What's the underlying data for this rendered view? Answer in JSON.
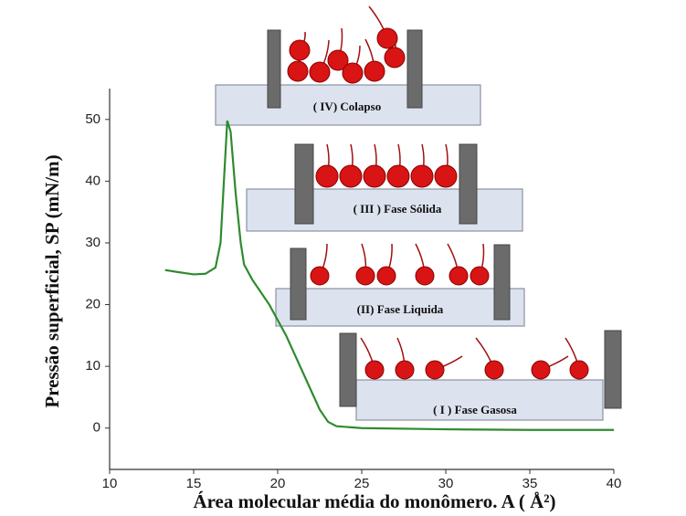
{
  "chart_data": {
    "type": "line",
    "xlabel": "Área molecular média do monômero. A ( Å²)",
    "ylabel": "Pressão superficial, SP (mN/m)",
    "x": [
      13.3,
      14,
      15,
      15.7,
      16.3,
      16.6,
      16.8,
      17.0,
      17.2,
      17.5,
      17.8,
      18.0,
      18.5,
      19.5,
      20.5,
      21.5,
      22.5,
      23,
      23.5,
      25,
      30,
      35,
      40
    ],
    "series": [
      {
        "color": "#2e8b2e",
        "values": [
          25.6,
          25.3,
          24.9,
          25.0,
          26,
          30,
          40,
          49.8,
          48,
          38,
          30,
          26.5,
          24,
          20,
          15,
          9,
          3,
          1,
          0.3,
          0,
          -0.2,
          -0.3,
          -0.3
        ]
      }
    ],
    "xlim": [
      10,
      40
    ],
    "xticks": [
      10,
      15,
      20,
      25,
      30,
      35,
      40
    ],
    "ylim": [
      -6.7,
      55
    ],
    "yticks": [
      0,
      10,
      20,
      30,
      40,
      50
    ],
    "grid": false,
    "annotations": [
      "( IV) Colapso",
      "( III ) Fase Sólida",
      "(II) Fase Liquida",
      "( I ) Fase Gasosa"
    ]
  }
}
